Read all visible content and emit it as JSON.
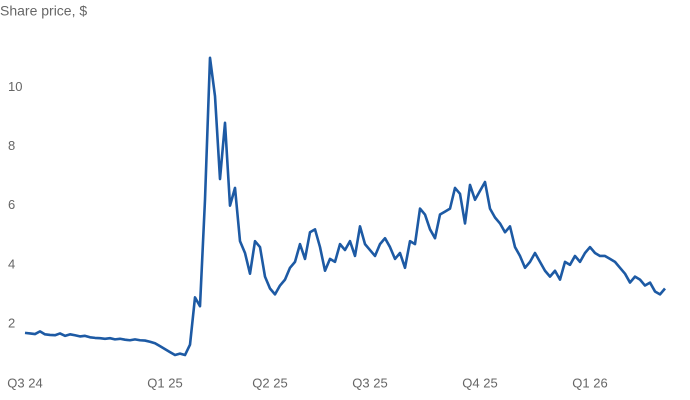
{
  "chart_data": {
    "type": "line",
    "title": "Share price, $",
    "categories": [
      "Q3 24",
      null,
      null,
      null,
      null,
      null,
      null,
      null,
      null,
      null,
      null,
      null,
      null,
      null,
      null,
      null,
      null,
      null,
      null,
      null,
      null,
      null,
      null,
      null,
      null,
      null,
      null,
      null,
      "Q1 25",
      null,
      null,
      null,
      null,
      null,
      null,
      null,
      null,
      null,
      null,
      null,
      null,
      null,
      null,
      null,
      null,
      null,
      null,
      null,
      null,
      "Q2 25",
      null,
      null,
      null,
      null,
      null,
      null,
      null,
      null,
      null,
      null,
      null,
      null,
      null,
      null,
      null,
      null,
      null,
      null,
      null,
      "Q3 25",
      null,
      null,
      null,
      null,
      null,
      null,
      null,
      null,
      null,
      null,
      null,
      null,
      null,
      null,
      null,
      null,
      null,
      null,
      null,
      null,
      null,
      "Q4 25",
      null,
      null,
      null,
      null,
      null,
      null,
      null,
      null,
      null,
      null,
      null,
      null,
      null,
      null,
      null,
      null,
      null,
      null,
      null,
      null,
      null,
      "Q1 26",
      null,
      null,
      null,
      null,
      null,
      null,
      null,
      null,
      null,
      null,
      null,
      null,
      null,
      null,
      null
    ],
    "values": [
      1.7,
      1.68,
      1.66,
      1.75,
      1.65,
      1.63,
      1.62,
      1.68,
      1.6,
      1.65,
      1.62,
      1.58,
      1.6,
      1.55,
      1.53,
      1.52,
      1.5,
      1.52,
      1.48,
      1.5,
      1.47,
      1.45,
      1.48,
      1.45,
      1.44,
      1.4,
      1.35,
      1.25,
      1.15,
      1.05,
      0.95,
      1.0,
      0.95,
      1.3,
      2.9,
      2.6,
      6.2,
      11.0,
      9.7,
      6.9,
      8.8,
      6.0,
      6.6,
      4.8,
      4.4,
      3.7,
      4.8,
      4.6,
      3.6,
      3.2,
      3.0,
      3.3,
      3.5,
      3.9,
      4.1,
      4.7,
      4.2,
      5.1,
      5.2,
      4.6,
      3.8,
      4.2,
      4.1,
      4.7,
      4.5,
      4.8,
      4.3,
      5.3,
      4.7,
      4.5,
      4.3,
      4.7,
      4.9,
      4.6,
      4.2,
      4.4,
      3.9,
      4.8,
      4.7,
      5.9,
      5.7,
      5.2,
      4.9,
      5.7,
      5.8,
      5.9,
      6.6,
      6.4,
      5.4,
      6.7,
      6.2,
      6.5,
      6.8,
      5.9,
      5.6,
      5.4,
      5.1,
      5.3,
      4.6,
      4.3,
      3.9,
      4.1,
      4.4,
      4.1,
      3.8,
      3.6,
      3.8,
      3.5,
      4.1,
      4.0,
      4.3,
      4.1,
      4.4,
      4.6,
      4.4,
      4.3,
      4.3,
      4.2,
      4.1,
      3.9,
      3.7,
      3.4,
      3.6,
      3.5,
      3.3,
      3.4,
      3.1,
      3.0,
      3.2
    ],
    "color": "#1d5aa4",
    "ylim": [
      0.6,
      11.6
    ],
    "yticks": [
      2,
      4,
      6,
      8,
      10
    ]
  }
}
